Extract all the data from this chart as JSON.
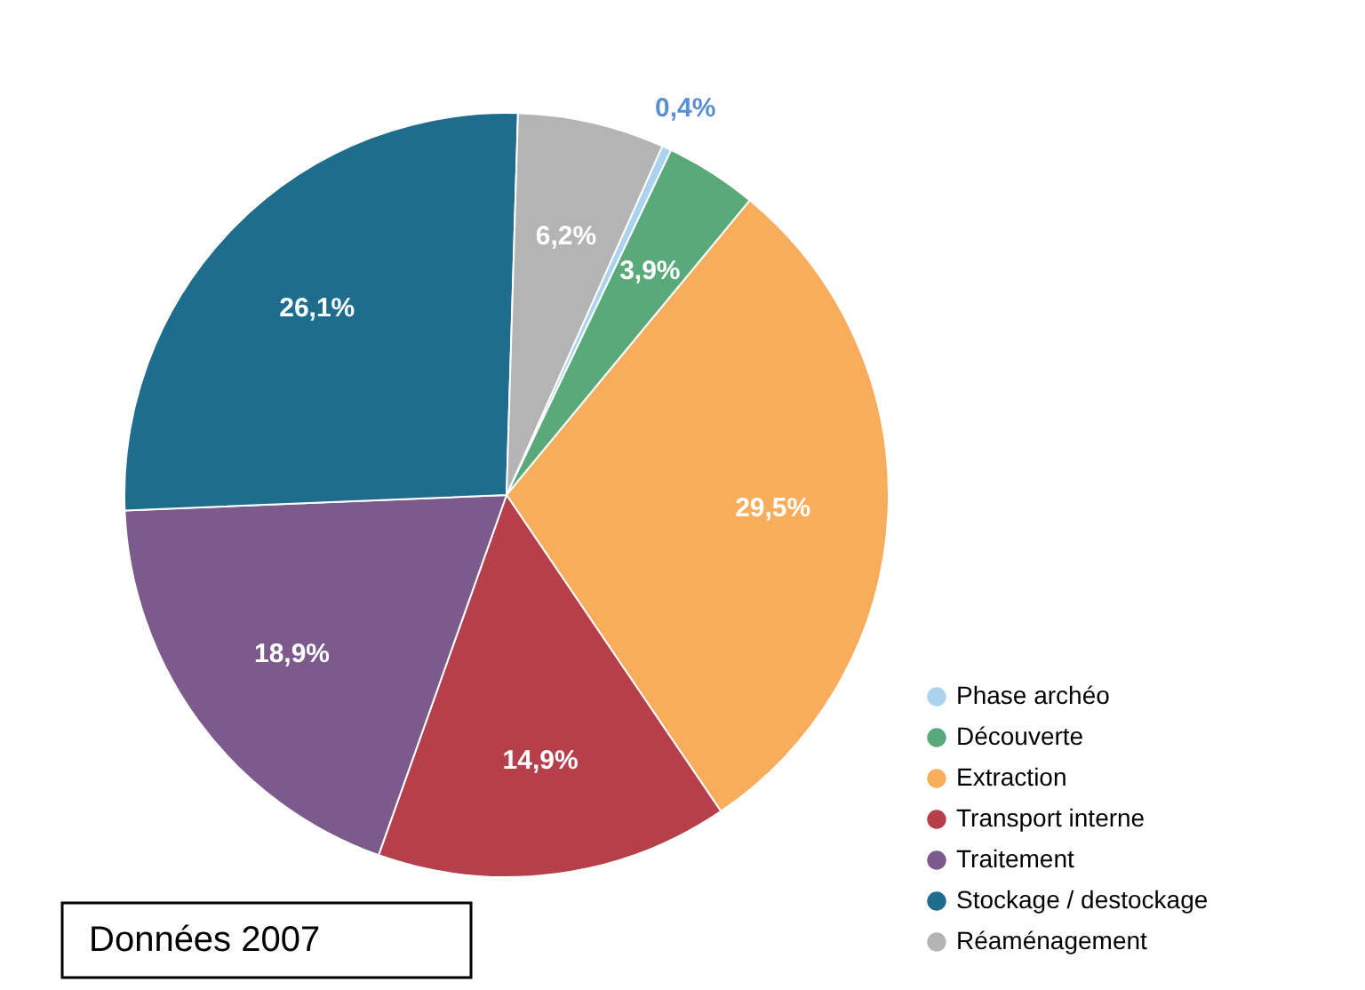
{
  "chart_data": {
    "type": "pie",
    "categories": [
      "Phase archéo",
      "Découverte",
      "Extraction",
      "Transport interne",
      "Traitement",
      "Stockage / destockage",
      "Réaménagement"
    ],
    "values": [
      0.4,
      3.9,
      29.5,
      14.9,
      18.9,
      26.1,
      6.2
    ],
    "value_labels": [
      "0,4%",
      "3,9%",
      "29,5%",
      "14,9%",
      "18,9%",
      "26,1%",
      "6,2%"
    ],
    "colors": [
      "#a9d3ef",
      "#5aa97a",
      "#f8ad5c",
      "#b53f4b",
      "#7c5b8c",
      "#1f6d8c",
      "#b4b4b4"
    ],
    "legend": "bottom right",
    "annotations": [
      "Données 2007"
    ]
  }
}
